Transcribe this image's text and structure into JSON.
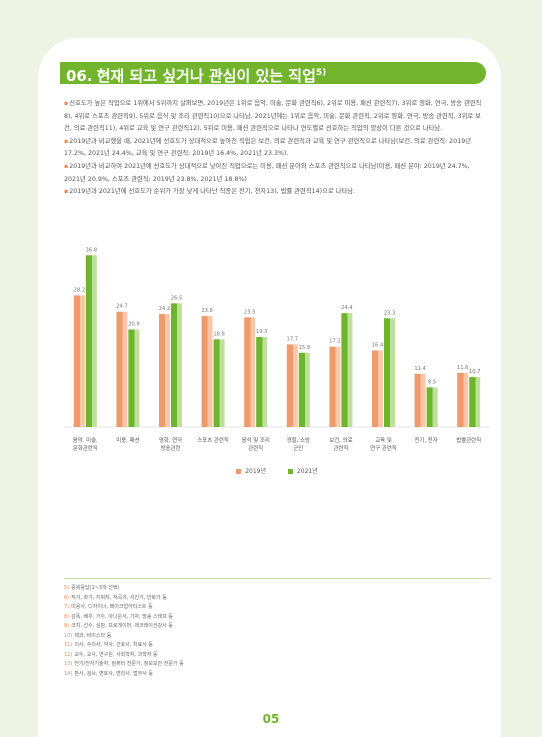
{
  "section": {
    "number": "06.",
    "title": "현재 되고 싶거나 관심이 있는 직업",
    "sup": "5)"
  },
  "paragraphs": [
    "선호도가 높은 직업으로 1위에서 5위까지 살펴보면, 2019년은 1위로 음악, 미술, 문화 관련직6), 2위로 미용, 패션 관련직7), 3위로 영화, 연극, 방송 관련직8), 4위로 스포츠 관련직9), 5위로 음식 및 조리 관련직10)으로 나타남. 2021년에는 1위로 음악, 미술, 문화 관련직, 2위로 영화, 연극, 방송 관련직, 3위로 보건, 의료 관련직11), 4위로 교육 및 연구 관련직12), 5위로 미용, 패션 관련직으로 나타나 연도별로 선호하는 직업의 양상이 다른 것으로 나타남.",
    "2019년과 비교했을 때, 2021년에 선호도가 상대적으로 높아진 직업은 보건, 의료 관련직과 교육 및 연구 관련직으로 나타남(보건, 의료 관련직: 2019년 17.2%, 2021년 24.4%, 교육 및 연구 관련직: 2019년 16.4%, 2021년 23.3%).",
    "2019년과 비교하여 2021년에 선호도가 상대적으로 낮아진 직업으로는 미용, 패션 분야와 스포츠 관련직으로 나타남(미용, 패션 분야: 2019년 24.7%, 2021년 20.9%, 스포츠 관련직: 2019년 23.8%, 2021년 18.8%)",
    "2019년과 2021년에 선호도가 순위가 가장 낮게 나타난 직종은 전기, 전자13), 법률 관련직14)으로 나타남."
  ],
  "chart_data": {
    "type": "bar",
    "categories": [
      [
        "음악, 미술,",
        "문화관련직"
      ],
      [
        "미용, 패션"
      ],
      [
        "영화, 연극",
        "방송관련"
      ],
      [
        "스포츠 관련직"
      ],
      [
        "음식 및 조리",
        "관련직"
      ],
      [
        "경찰, 소방",
        "군인"
      ],
      [
        "보건, 의료",
        "관련직"
      ],
      [
        "교육 및",
        "연구 관련직"
      ],
      [
        "전기, 전자"
      ],
      [
        "법률관련직"
      ]
    ],
    "series": [
      {
        "name": "2019년",
        "values": [
          28.2,
          24.7,
          24.2,
          23.8,
          23.5,
          17.7,
          17.2,
          16.4,
          11.4,
          11.6
        ]
      },
      {
        "name": "2021년",
        "values": [
          36.8,
          20.9,
          26.5,
          18.8,
          19.3,
          15.9,
          24.4,
          23.3,
          8.5,
          10.7
        ]
      }
    ],
    "value_labels": [
      [
        "28.2",
        "24.7",
        "24.2",
        "23.8",
        "23.5",
        "17.7",
        "17.2",
        "16.4",
        "11.4",
        "11.6"
      ],
      [
        "36.8",
        "20.9",
        "26.5",
        "18.8",
        "19.3",
        "15.9",
        "24.4",
        "23.3",
        "8.5",
        "10.7"
      ]
    ],
    "ylim": [
      0,
      40
    ],
    "grid": false,
    "legend": "bottom",
    "colors": {
      "2019": "#ef9a6a",
      "2019_light": "#f6c7a8",
      "2021": "#6db52c",
      "2021_light": "#bfe09b"
    }
  },
  "footnotes": [
    {
      "num": "5)",
      "text": "중복응답(1~3개 선택)"
    },
    {
      "num": "6)",
      "text": "작가, 화가, 지휘자, 작곡가, 사진가, 만화가 등"
    },
    {
      "num": "7)",
      "text": "미용사, 디자이너, 메이크업아티스트 등"
    },
    {
      "num": "8)",
      "text": "감독, 배우, 가수, 아나운서, 기자, 방송 스태프 등"
    },
    {
      "num": "9)",
      "text": "코치, 선수, 심판, 프로게이머, 레크레이션강사 등"
    },
    {
      "num": "10)",
      "text": "제과, 바리스타 등"
    },
    {
      "num": "11)",
      "text": "의사, 수의사, 약사, 간호사, 치료사 등"
    },
    {
      "num": "12)",
      "text": "교수, 교사, 연구원, 사회학자, 과학자 등"
    },
    {
      "num": "13)",
      "text": "전기/전자기술자, 컴퓨터 전문가, 정보보안 전문가 등"
    },
    {
      "num": "14)",
      "text": "판사, 검사, 변호사, 변리사, 법무사 등"
    }
  ],
  "page_number": "05"
}
